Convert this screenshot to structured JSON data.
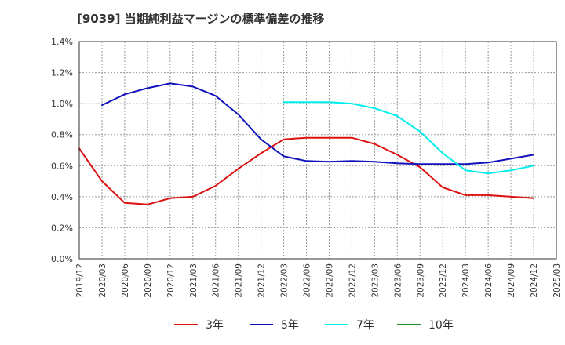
{
  "chart_data": {
    "type": "line",
    "title": "[9039]  当期純利益マージンの標準偏差の推移",
    "xlabel": "",
    "ylabel": "",
    "x": [
      "2019/12",
      "2020/03",
      "2020/06",
      "2020/09",
      "2020/12",
      "2021/03",
      "2021/06",
      "2021/09",
      "2021/12",
      "2022/03",
      "2022/06",
      "2022/09",
      "2022/12",
      "2023/03",
      "2023/06",
      "2023/09",
      "2023/12",
      "2024/03",
      "2024/06",
      "2024/09",
      "2024/12",
      "2025/03"
    ],
    "ylim": [
      0,
      1.4
    ],
    "yticks": [
      "0.0%",
      "0.2%",
      "0.4%",
      "0.6%",
      "0.8%",
      "1.0%",
      "1.2%",
      "1.4%"
    ],
    "grid": true,
    "legend_position": "bottom",
    "series": [
      {
        "name": "3年",
        "color": "#dd1111",
        "values": [
          0.71,
          0.5,
          0.36,
          0.35,
          0.39,
          0.4,
          0.47,
          0.58,
          0.68,
          0.77,
          0.78,
          0.78,
          0.78,
          0.74,
          0.67,
          0.59,
          0.46,
          0.41,
          0.41,
          0.4,
          0.39,
          null
        ]
      },
      {
        "name": "5年",
        "color": "#1111bb",
        "values": [
          null,
          0.99,
          1.06,
          1.1,
          1.13,
          1.11,
          1.05,
          0.93,
          0.77,
          0.66,
          0.63,
          0.625,
          0.63,
          0.625,
          0.615,
          0.61,
          0.61,
          0.61,
          0.62,
          0.645,
          0.67,
          null
        ]
      },
      {
        "name": "7年",
        "color": "#00eeee",
        "values": [
          null,
          null,
          null,
          null,
          null,
          null,
          null,
          null,
          null,
          1.01,
          1.01,
          1.01,
          1.0,
          0.97,
          0.92,
          0.82,
          0.68,
          0.57,
          0.55,
          0.57,
          0.6,
          null
        ]
      },
      {
        "name": "10年",
        "color": "#228822",
        "values": [
          null,
          null,
          null,
          null,
          null,
          null,
          null,
          null,
          null,
          null,
          null,
          null,
          null,
          null,
          null,
          null,
          null,
          null,
          null,
          null,
          null,
          null
        ]
      }
    ]
  }
}
